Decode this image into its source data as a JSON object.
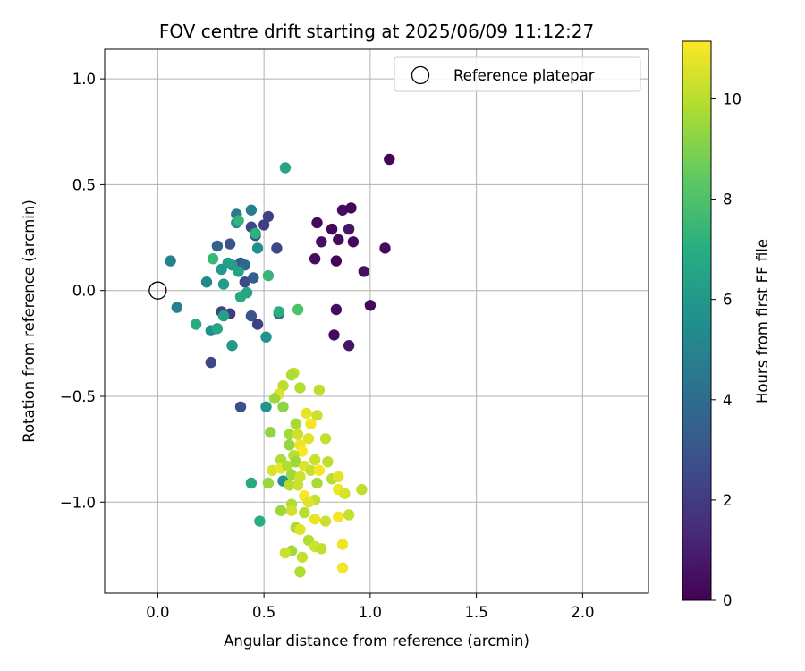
{
  "chart_data": {
    "type": "scatter",
    "title": "FOV centre drift starting at 2025/06/09 11:12:27",
    "xlabel": "Angular distance from reference (arcmin)",
    "ylabel": "Rotation from reference (arcmin)",
    "xlim": [
      -0.25,
      2.31
    ],
    "ylim": [
      -1.43,
      1.14
    ],
    "xticks": [
      0.0,
      0.5,
      1.0,
      1.5,
      2.0
    ],
    "xtick_labels": [
      "0.0",
      "0.5",
      "1.0",
      "1.5",
      "2.0"
    ],
    "yticks": [
      1.0,
      0.5,
      0.0,
      -0.5,
      -1.0
    ],
    "ytick_labels": [
      "1.0",
      "0.5",
      "0.0",
      "−0.5",
      "−1.0"
    ],
    "grid": true,
    "legend": {
      "position": "top-right",
      "entries": [
        "Reference platepar"
      ]
    },
    "reference_point": {
      "x": 0.0,
      "y": 0.0
    },
    "colorbar": {
      "label": "Hours from first FF file",
      "colormap": "viridis",
      "range": [
        0,
        11.15
      ],
      "ticks": [
        0,
        2,
        4,
        6,
        8,
        10
      ],
      "tick_labels": [
        "0",
        "2",
        "4",
        "6",
        "8",
        "10"
      ]
    },
    "points": [
      {
        "x": 1.09,
        "y": 0.62,
        "c": 0.1
      },
      {
        "x": 0.75,
        "y": 0.32,
        "c": 0.3
      },
      {
        "x": 0.82,
        "y": 0.29,
        "c": 0.2
      },
      {
        "x": 0.87,
        "y": 0.38,
        "c": 0.4
      },
      {
        "x": 0.91,
        "y": 0.39,
        "c": 0.2
      },
      {
        "x": 0.77,
        "y": 0.23,
        "c": 0.5
      },
      {
        "x": 0.85,
        "y": 0.24,
        "c": 0.3
      },
      {
        "x": 0.9,
        "y": 0.29,
        "c": 0.6
      },
      {
        "x": 0.92,
        "y": 0.23,
        "c": 0.2
      },
      {
        "x": 1.07,
        "y": 0.2,
        "c": 0.3
      },
      {
        "x": 0.74,
        "y": 0.15,
        "c": 0.4
      },
      {
        "x": 0.84,
        "y": 0.14,
        "c": 0.1
      },
      {
        "x": 0.97,
        "y": 0.09,
        "c": 0.5
      },
      {
        "x": 1.0,
        "y": -0.07,
        "c": 0.2
      },
      {
        "x": 0.84,
        "y": -0.09,
        "c": 0.4
      },
      {
        "x": 0.83,
        "y": -0.21,
        "c": 0.3
      },
      {
        "x": 0.9,
        "y": -0.26,
        "c": 0.7
      },
      {
        "x": 0.52,
        "y": 0.35,
        "c": 2.2
      },
      {
        "x": 0.5,
        "y": 0.31,
        "c": 2.0
      },
      {
        "x": 0.44,
        "y": 0.3,
        "c": 2.5
      },
      {
        "x": 0.46,
        "y": 0.26,
        "c": 2.8
      },
      {
        "x": 0.56,
        "y": 0.2,
        "c": 2.4
      },
      {
        "x": 0.34,
        "y": 0.22,
        "c": 3.0
      },
      {
        "x": 0.28,
        "y": 0.21,
        "c": 3.6
      },
      {
        "x": 0.39,
        "y": 0.13,
        "c": 3.2
      },
      {
        "x": 0.41,
        "y": 0.12,
        "c": 3.8
      },
      {
        "x": 0.45,
        "y": 0.06,
        "c": 3.4
      },
      {
        "x": 0.41,
        "y": 0.04,
        "c": 2.6
      },
      {
        "x": 0.3,
        "y": -0.1,
        "c": 2.3
      },
      {
        "x": 0.34,
        "y": -0.11,
        "c": 2.0
      },
      {
        "x": 0.44,
        "y": -0.12,
        "c": 3.0
      },
      {
        "x": 0.47,
        "y": -0.16,
        "c": 2.2
      },
      {
        "x": 0.25,
        "y": -0.34,
        "c": 2.4
      },
      {
        "x": 0.39,
        "y": -0.55,
        "c": 2.7
      },
      {
        "x": 0.57,
        "y": -0.11,
        "c": 3.6
      },
      {
        "x": 0.06,
        "y": 0.14,
        "c": 5.0
      },
      {
        "x": 0.09,
        "y": -0.08,
        "c": 4.9
      },
      {
        "x": 0.37,
        "y": 0.36,
        "c": 4.6
      },
      {
        "x": 0.44,
        "y": 0.38,
        "c": 4.8
      },
      {
        "x": 0.37,
        "y": 0.32,
        "c": 5.4
      },
      {
        "x": 0.47,
        "y": 0.2,
        "c": 5.6
      },
      {
        "x": 0.23,
        "y": 0.04,
        "c": 5.2
      },
      {
        "x": 0.31,
        "y": 0.03,
        "c": 6.2
      },
      {
        "x": 0.3,
        "y": 0.1,
        "c": 6.0
      },
      {
        "x": 0.35,
        "y": 0.12,
        "c": 6.1
      },
      {
        "x": 0.33,
        "y": 0.13,
        "c": 6.3
      },
      {
        "x": 0.38,
        "y": 0.09,
        "c": 6.5
      },
      {
        "x": 0.39,
        "y": -0.03,
        "c": 6.8
      },
      {
        "x": 0.42,
        "y": -0.01,
        "c": 6.6
      },
      {
        "x": 0.25,
        "y": -0.19,
        "c": 5.5
      },
      {
        "x": 0.28,
        "y": -0.18,
        "c": 6.7
      },
      {
        "x": 0.31,
        "y": -0.12,
        "c": 6.4
      },
      {
        "x": 0.18,
        "y": -0.16,
        "c": 6.9
      },
      {
        "x": 0.35,
        "y": -0.26,
        "c": 6.0
      },
      {
        "x": 0.51,
        "y": -0.22,
        "c": 5.8
      },
      {
        "x": 0.6,
        "y": 0.58,
        "c": 6.6
      },
      {
        "x": 0.46,
        "y": 0.27,
        "c": 7.1
      },
      {
        "x": 0.38,
        "y": 0.33,
        "c": 7.3
      },
      {
        "x": 0.26,
        "y": 0.15,
        "c": 7.5
      },
      {
        "x": 0.52,
        "y": 0.07,
        "c": 7.4
      },
      {
        "x": 0.57,
        "y": -0.1,
        "c": 7.0
      },
      {
        "x": 0.66,
        "y": -0.09,
        "c": 8.0
      },
      {
        "x": 0.44,
        "y": -0.91,
        "c": 6.8
      },
      {
        "x": 0.48,
        "y": -1.09,
        "c": 7.0
      },
      {
        "x": 0.59,
        "y": -0.9,
        "c": 5.6
      },
      {
        "x": 0.51,
        "y": -0.55,
        "c": 5.8
      },
      {
        "x": 0.64,
        "y": -0.39,
        "c": 10.2
      },
      {
        "x": 0.63,
        "y": -0.4,
        "c": 9.8
      },
      {
        "x": 0.59,
        "y": -0.45,
        "c": 10.0
      },
      {
        "x": 0.67,
        "y": -0.46,
        "c": 9.9
      },
      {
        "x": 0.76,
        "y": -0.47,
        "c": 10.1
      },
      {
        "x": 0.57,
        "y": -0.49,
        "c": 10.6
      },
      {
        "x": 0.55,
        "y": -0.51,
        "c": 9.5
      },
      {
        "x": 0.59,
        "y": -0.55,
        "c": 9.2
      },
      {
        "x": 0.7,
        "y": -0.58,
        "c": 10.8
      },
      {
        "x": 0.75,
        "y": -0.59,
        "c": 10.3
      },
      {
        "x": 0.65,
        "y": -0.63,
        "c": 9.7
      },
      {
        "x": 0.72,
        "y": -0.63,
        "c": 11.0
      },
      {
        "x": 0.53,
        "y": -0.67,
        "c": 9.3
      },
      {
        "x": 0.62,
        "y": -0.68,
        "c": 9.6
      },
      {
        "x": 0.66,
        "y": -0.68,
        "c": 10.4
      },
      {
        "x": 0.71,
        "y": -0.7,
        "c": 10.7
      },
      {
        "x": 0.79,
        "y": -0.7,
        "c": 10.2
      },
      {
        "x": 0.62,
        "y": -0.73,
        "c": 9.4
      },
      {
        "x": 0.67,
        "y": -0.73,
        "c": 10.9
      },
      {
        "x": 0.68,
        "y": -0.76,
        "c": 11.1
      },
      {
        "x": 0.64,
        "y": -0.78,
        "c": 10.0
      },
      {
        "x": 0.58,
        "y": -0.8,
        "c": 9.8
      },
      {
        "x": 0.65,
        "y": -0.81,
        "c": 9.5
      },
      {
        "x": 0.74,
        "y": -0.8,
        "c": 10.3
      },
      {
        "x": 0.8,
        "y": -0.81,
        "c": 10.1
      },
      {
        "x": 0.54,
        "y": -0.85,
        "c": 10.5
      },
      {
        "x": 0.58,
        "y": -0.84,
        "c": 10.8
      },
      {
        "x": 0.61,
        "y": -0.83,
        "c": 9.9
      },
      {
        "x": 0.69,
        "y": -0.83,
        "c": 10.6
      },
      {
        "x": 0.72,
        "y": -0.85,
        "c": 10.2
      },
      {
        "x": 0.76,
        "y": -0.85,
        "c": 11.0
      },
      {
        "x": 0.63,
        "y": -0.87,
        "c": 9.6
      },
      {
        "x": 0.67,
        "y": -0.88,
        "c": 10.4
      },
      {
        "x": 0.82,
        "y": -0.89,
        "c": 10.0
      },
      {
        "x": 0.85,
        "y": -0.88,
        "c": 10.7
      },
      {
        "x": 0.52,
        "y": -0.91,
        "c": 9.4
      },
      {
        "x": 0.62,
        "y": -0.92,
        "c": 9.9
      },
      {
        "x": 0.66,
        "y": -0.92,
        "c": 10.3
      },
      {
        "x": 0.75,
        "y": -0.91,
        "c": 9.7
      },
      {
        "x": 0.85,
        "y": -0.94,
        "c": 10.9
      },
      {
        "x": 0.88,
        "y": -0.96,
        "c": 10.5
      },
      {
        "x": 0.96,
        "y": -0.94,
        "c": 10.1
      },
      {
        "x": 0.69,
        "y": -0.97,
        "c": 11.1
      },
      {
        "x": 0.74,
        "y": -0.99,
        "c": 10.2
      },
      {
        "x": 0.63,
        "y": -1.01,
        "c": 9.8
      },
      {
        "x": 0.71,
        "y": -1.0,
        "c": 10.6
      },
      {
        "x": 0.58,
        "y": -1.04,
        "c": 9.5
      },
      {
        "x": 0.63,
        "y": -1.04,
        "c": 10.4
      },
      {
        "x": 0.69,
        "y": -1.05,
        "c": 10.0
      },
      {
        "x": 0.74,
        "y": -1.08,
        "c": 10.8
      },
      {
        "x": 0.79,
        "y": -1.09,
        "c": 10.3
      },
      {
        "x": 0.85,
        "y": -1.07,
        "c": 11.0
      },
      {
        "x": 0.9,
        "y": -1.06,
        "c": 10.2
      },
      {
        "x": 0.65,
        "y": -1.12,
        "c": 9.7
      },
      {
        "x": 0.67,
        "y": -1.13,
        "c": 10.7
      },
      {
        "x": 0.71,
        "y": -1.18,
        "c": 9.9
      },
      {
        "x": 0.74,
        "y": -1.21,
        "c": 10.4
      },
      {
        "x": 0.77,
        "y": -1.22,
        "c": 10.1
      },
      {
        "x": 0.63,
        "y": -1.23,
        "c": 9.6
      },
      {
        "x": 0.6,
        "y": -1.24,
        "c": 10.3
      },
      {
        "x": 0.87,
        "y": -1.2,
        "c": 10.9
      },
      {
        "x": 0.68,
        "y": -1.26,
        "c": 10.2
      },
      {
        "x": 0.67,
        "y": -1.33,
        "c": 9.8
      },
      {
        "x": 0.87,
        "y": -1.31,
        "c": 11.0
      }
    ]
  }
}
